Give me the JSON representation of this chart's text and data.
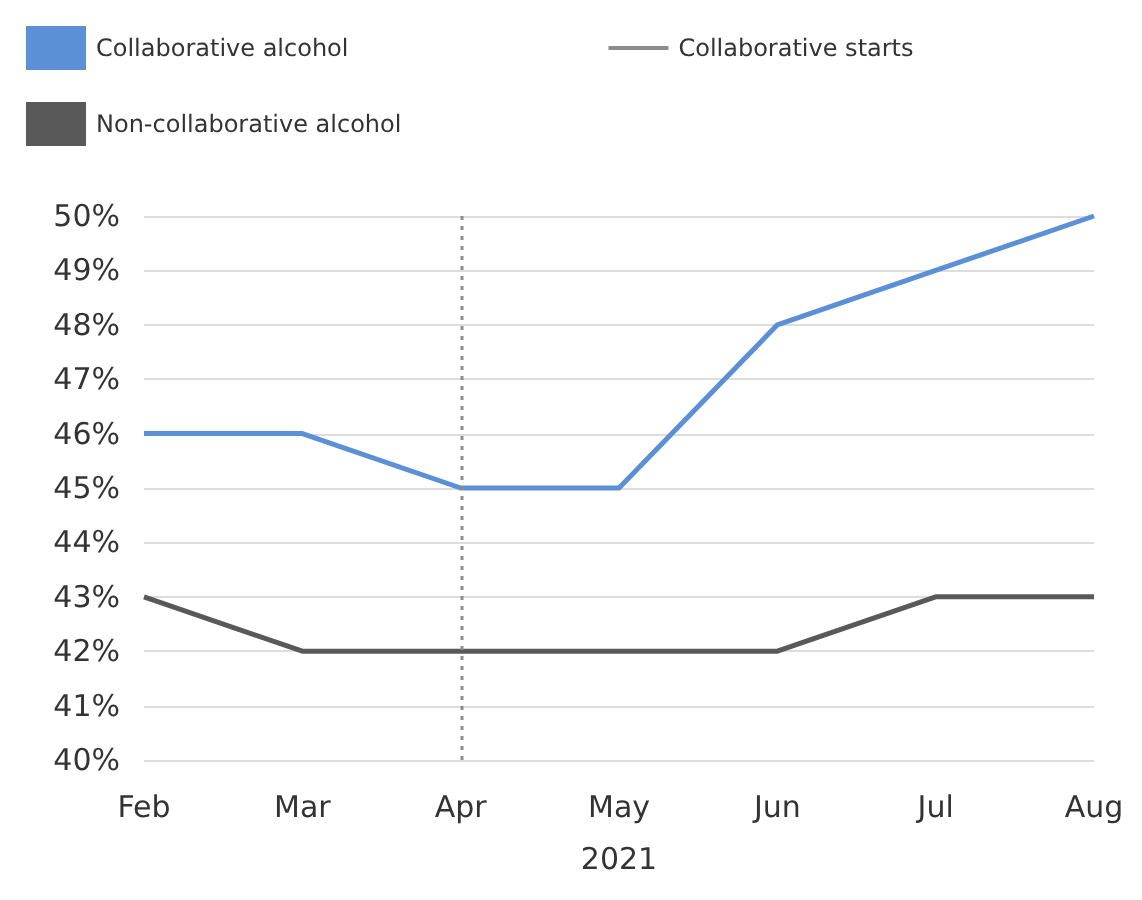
{
  "chart_data": {
    "type": "line",
    "xlabel": "2021",
    "categories": [
      "Feb",
      "Mar",
      "Apr",
      "May",
      "Jun",
      "Jul",
      "Aug"
    ],
    "series": [
      {
        "name": "Collaborative alcohol",
        "color": "#5b8fd6",
        "values": [
          46,
          46,
          45,
          45,
          48,
          49,
          50
        ]
      },
      {
        "name": "Non-collaborative alcohol",
        "color": "#595959",
        "values": [
          43,
          42,
          42,
          42,
          42,
          43,
          43
        ]
      }
    ],
    "ylim": [
      40,
      50
    ],
    "yticks": [
      {
        "value": 40,
        "label": "40%"
      },
      {
        "value": 41,
        "label": "41%"
      },
      {
        "value": 42,
        "label": "42%"
      },
      {
        "value": 43,
        "label": "43%"
      },
      {
        "value": 44,
        "label": "44%"
      },
      {
        "value": 45,
        "label": "45%"
      },
      {
        "value": 46,
        "label": "46%"
      },
      {
        "value": 47,
        "label": "47%"
      },
      {
        "value": 48,
        "label": "48%"
      },
      {
        "value": 49,
        "label": "49%"
      },
      {
        "value": 50,
        "label": "50%"
      }
    ],
    "ref_lines": [
      {
        "axis": "x",
        "value": "Apr",
        "label": "Collaborative starts",
        "color": "#8c8c8c",
        "line_style": "dotted"
      }
    ],
    "grid": "y",
    "legend": "top left",
    "marker": "none",
    "line_style": "solid"
  }
}
